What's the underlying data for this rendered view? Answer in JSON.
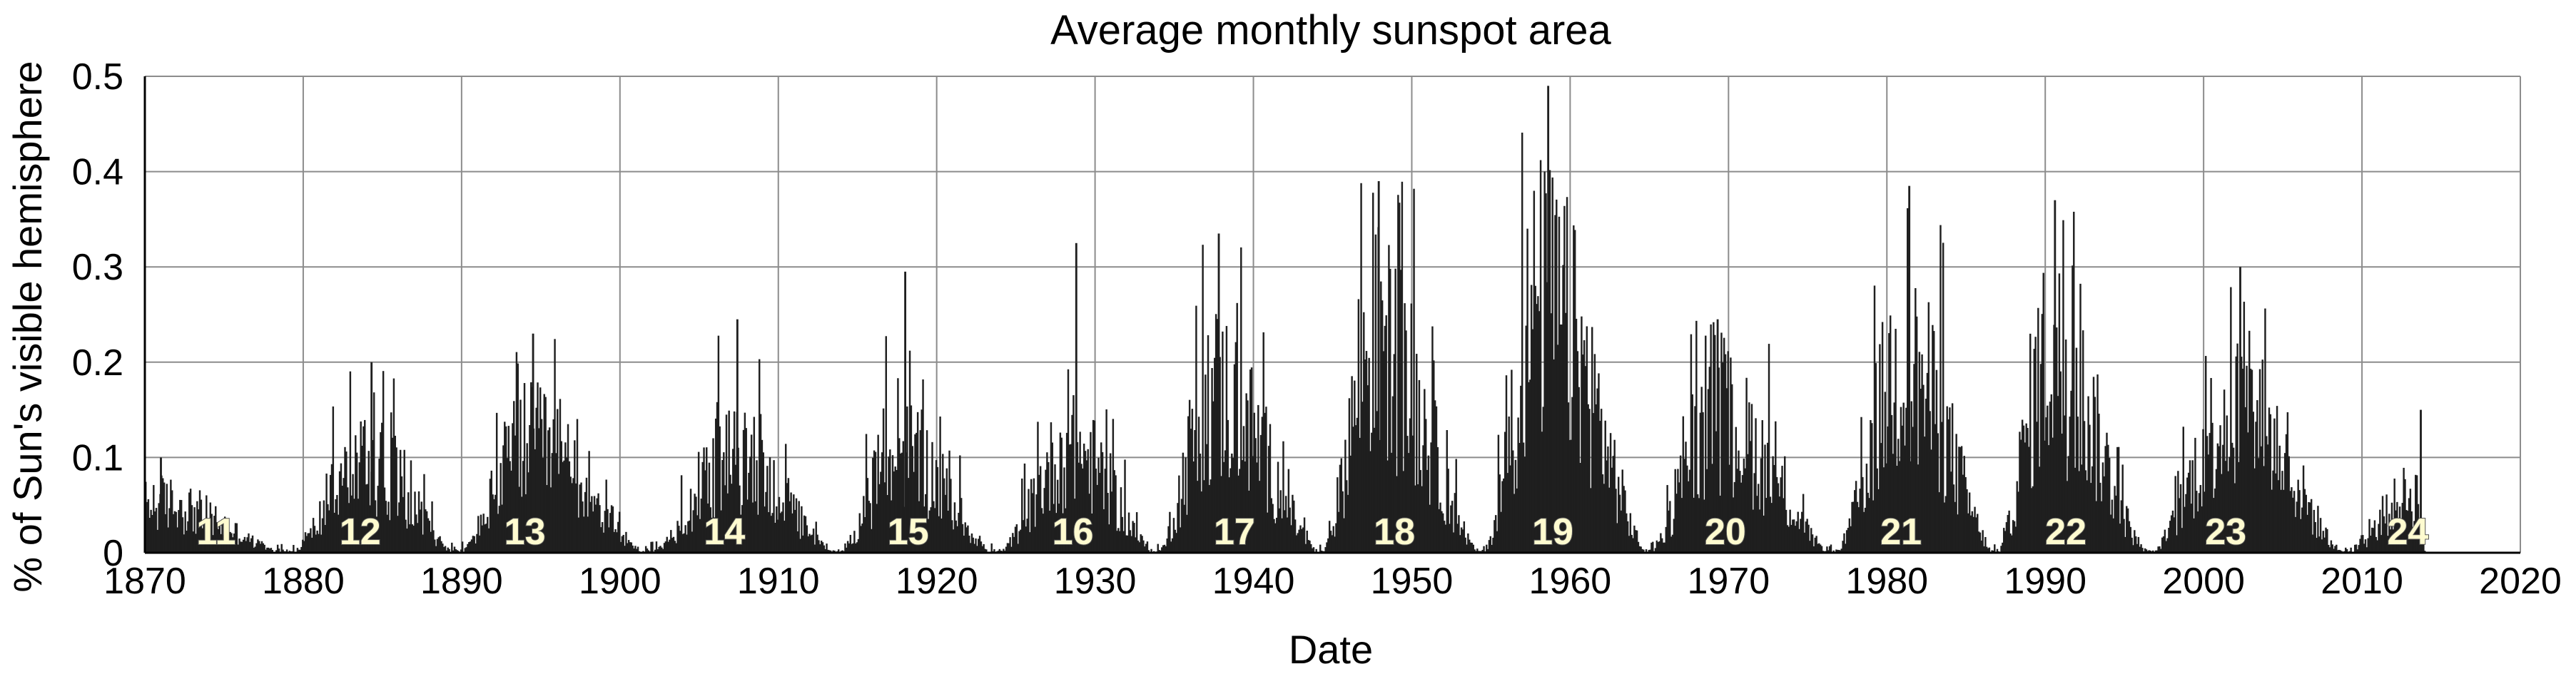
{
  "chart_data": {
    "type": "bar",
    "title": "Average monthly sunspot area",
    "xlabel": "Date",
    "ylabel": "% of Sun's visible hemisphere",
    "xlim": [
      1870,
      2020
    ],
    "ylim": [
      0,
      0.5
    ],
    "x_ticks": [
      "1870",
      "1880",
      "1890",
      "1900",
      "1910",
      "1920",
      "1930",
      "1940",
      "1950",
      "1960",
      "1970",
      "1980",
      "1990",
      "2000",
      "2010",
      "2020"
    ],
    "y_ticks": [
      "0",
      "0.1",
      "0.2",
      "0.3",
      "0.4",
      "0.5"
    ],
    "grid": true,
    "series_color": "#1f1f1f",
    "label_color": "#fffbd0",
    "cycles": [
      {
        "label": "11",
        "start": 1867.2,
        "max": 1870.6,
        "end": 1878.9,
        "amp": 0.06,
        "spike": 0.1
      },
      {
        "label": "12",
        "start": 1878.9,
        "max": 1883.9,
        "end": 1889.6,
        "amp": 0.11,
        "spike": 0.2
      },
      {
        "label": "13",
        "start": 1889.6,
        "max": 1894.1,
        "end": 1901.7,
        "amp": 0.13,
        "spike": 0.23
      },
      {
        "label": "14",
        "start": 1901.7,
        "max": 1907.0,
        "end": 1913.6,
        "amp": 0.11,
        "spike": 0.245
      },
      {
        "label": "15",
        "start": 1913.6,
        "max": 1917.6,
        "end": 1923.6,
        "amp": 0.12,
        "spike": 0.295
      },
      {
        "label": "16",
        "start": 1923.6,
        "max": 1928.4,
        "end": 1933.8,
        "amp": 0.12,
        "spike": 0.325
      },
      {
        "label": "17",
        "start": 1933.8,
        "max": 1937.4,
        "end": 1944.2,
        "amp": 0.19,
        "spike": 0.335
      },
      {
        "label": "18",
        "start": 1944.2,
        "max": 1947.5,
        "end": 1954.3,
        "amp": 0.25,
        "spike": 0.39
      },
      {
        "label": "19",
        "start": 1954.3,
        "max": 1958.2,
        "end": 1964.9,
        "amp": 0.3,
        "spike": 0.49
      },
      {
        "label": "20",
        "start": 1964.9,
        "max": 1968.9,
        "end": 1976.5,
        "amp": 0.16,
        "spike": 0.245
      },
      {
        "label": "21",
        "start": 1976.5,
        "max": 1981.0,
        "end": 1986.8,
        "amp": 0.22,
        "spike": 0.385
      },
      {
        "label": "22",
        "start": 1986.8,
        "max": 1990.2,
        "end": 1996.4,
        "amp": 0.23,
        "spike": 0.37
      },
      {
        "label": "23",
        "start": 1996.4,
        "max": 2001.9,
        "end": 2008.9,
        "amp": 0.17,
        "spike": 0.3
      },
      {
        "label": "24",
        "start": 2008.9,
        "max": 2013.3,
        "end": 2014.0,
        "amp": 0.07,
        "spike": 0.15
      }
    ],
    "label_positions": [
      {
        "label": "11",
        "x": 1874.5
      },
      {
        "label": "12",
        "x": 1883.6
      },
      {
        "label": "13",
        "x": 1894.0
      },
      {
        "label": "14",
        "x": 1906.6
      },
      {
        "label": "15",
        "x": 1918.2
      },
      {
        "label": "16",
        "x": 1928.6
      },
      {
        "label": "17",
        "x": 1938.8
      },
      {
        "label": "18",
        "x": 1948.9
      },
      {
        "label": "19",
        "x": 1958.9
      },
      {
        "label": "20",
        "x": 1969.8
      },
      {
        "label": "21",
        "x": 1980.9
      },
      {
        "label": "22",
        "x": 1991.3
      },
      {
        "label": "23",
        "x": 2001.4
      },
      {
        "label": "24",
        "x": 2012.9
      }
    ],
    "data_end": 2014.0
  }
}
